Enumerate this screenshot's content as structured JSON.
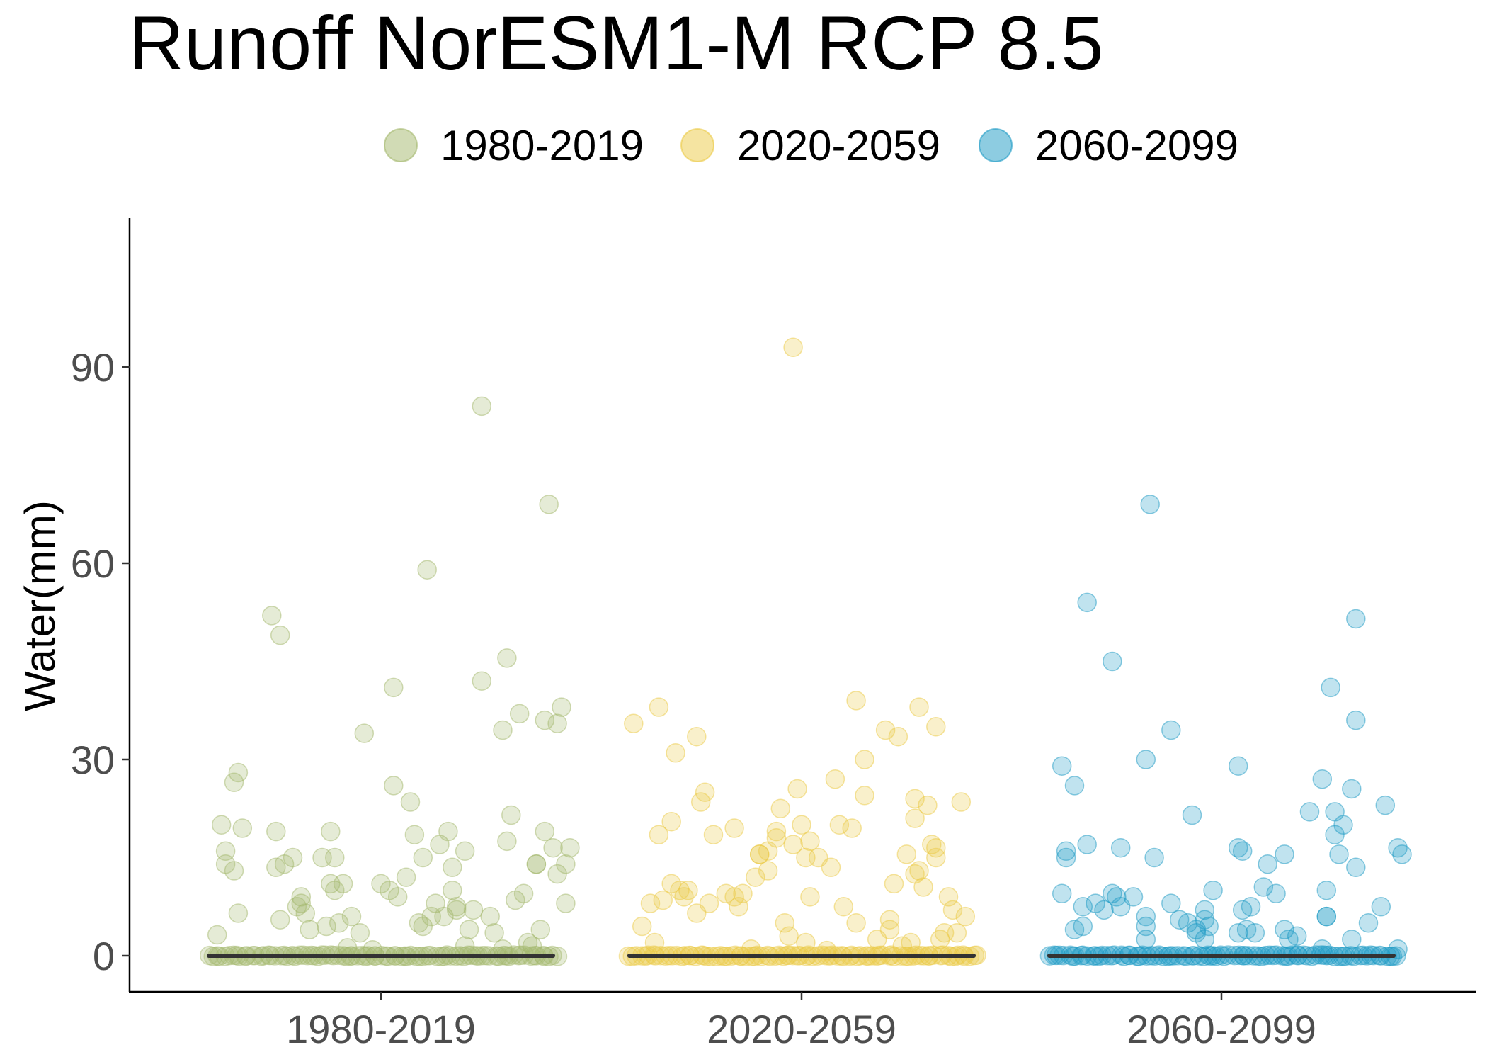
{
  "chart_data": {
    "type": "scatter",
    "title": "Runoff NorESM1-M RCP 8.5",
    "xlabel": "",
    "ylabel": "Water(mm)",
    "ylim": [
      -5,
      112
    ],
    "y_ticks": [
      0,
      30,
      60,
      90
    ],
    "categories": [
      "1980-2019",
      "2020-2059",
      "2060-2099"
    ],
    "legend_position": "top",
    "grid": false,
    "colors": [
      "#a3b86c",
      "#ebc944",
      "#1b9ac4"
    ],
    "median_color": "#333333",
    "series": [
      {
        "name": "1980-2019",
        "category": "1980-2019",
        "median": 0,
        "points": [
          [
            -0.39,
            3.2
          ],
          [
            -0.38,
            20
          ],
          [
            -0.37,
            16
          ],
          [
            -0.37,
            14
          ],
          [
            -0.35,
            13
          ],
          [
            -0.35,
            26.5
          ],
          [
            -0.34,
            28
          ],
          [
            -0.34,
            6.5
          ],
          [
            -0.33,
            19.5
          ],
          [
            -0.26,
            52
          ],
          [
            -0.25,
            19
          ],
          [
            -0.25,
            13.5
          ],
          [
            -0.24,
            49
          ],
          [
            -0.24,
            5.5
          ],
          [
            -0.23,
            14
          ],
          [
            -0.21,
            15
          ],
          [
            -0.2,
            7.5
          ],
          [
            -0.19,
            9
          ],
          [
            -0.19,
            8
          ],
          [
            -0.18,
            6.5
          ],
          [
            -0.17,
            4
          ],
          [
            -0.14,
            15
          ],
          [
            -0.13,
            4.5
          ],
          [
            -0.12,
            19
          ],
          [
            -0.12,
            11
          ],
          [
            -0.11,
            10
          ],
          [
            -0.11,
            15
          ],
          [
            -0.1,
            5
          ],
          [
            -0.09,
            11
          ],
          [
            -0.08,
            1.2
          ],
          [
            -0.07,
            6
          ],
          [
            -0.05,
            3.5
          ],
          [
            -0.04,
            34
          ],
          [
            -0.02,
            0.9
          ],
          [
            0.0,
            11
          ],
          [
            0.02,
            10
          ],
          [
            0.03,
            41
          ],
          [
            0.03,
            26
          ],
          [
            0.04,
            9
          ],
          [
            0.06,
            12
          ],
          [
            0.07,
            23.5
          ],
          [
            0.08,
            18.5
          ],
          [
            0.09,
            5
          ],
          [
            0.1,
            4.5
          ],
          [
            0.1,
            15
          ],
          [
            0.11,
            59
          ],
          [
            0.12,
            6
          ],
          [
            0.13,
            8
          ],
          [
            0.14,
            17
          ],
          [
            0.15,
            6
          ],
          [
            0.16,
            19
          ],
          [
            0.17,
            10
          ],
          [
            0.17,
            13.5
          ],
          [
            0.18,
            7
          ],
          [
            0.18,
            7.5
          ],
          [
            0.2,
            16
          ],
          [
            0.2,
            1.5
          ],
          [
            0.21,
            4
          ],
          [
            0.22,
            7
          ],
          [
            0.24,
            42
          ],
          [
            0.26,
            6
          ],
          [
            0.27,
            3.5
          ],
          [
            0.24,
            84
          ],
          [
            0.29,
            1
          ],
          [
            0.29,
            34.5
          ],
          [
            0.3,
            45.5
          ],
          [
            0.3,
            17.5
          ],
          [
            0.31,
            21.5
          ],
          [
            0.32,
            8.5
          ],
          [
            0.33,
            37
          ],
          [
            0.34,
            9.5
          ],
          [
            0.35,
            2
          ],
          [
            0.36,
            1.5
          ],
          [
            0.37,
            14
          ],
          [
            0.37,
            14
          ],
          [
            0.38,
            4
          ],
          [
            0.39,
            36
          ],
          [
            0.39,
            19
          ],
          [
            0.4,
            69
          ],
          [
            0.41,
            16.5
          ],
          [
            0.42,
            12.5
          ],
          [
            0.42,
            35.5
          ],
          [
            0.43,
            38
          ],
          [
            0.44,
            14
          ],
          [
            0.45,
            16.5
          ],
          [
            0.44,
            8
          ]
        ]
      },
      {
        "name": "2020-2059",
        "category": "2020-2059",
        "median": 0,
        "points": [
          [
            -0.4,
            35.5
          ],
          [
            -0.38,
            4.5
          ],
          [
            -0.36,
            8
          ],
          [
            -0.35,
            2
          ],
          [
            -0.34,
            38
          ],
          [
            -0.34,
            18.5
          ],
          [
            -0.33,
            8.5
          ],
          [
            -0.31,
            11
          ],
          [
            -0.31,
            20.5
          ],
          [
            -0.3,
            31
          ],
          [
            -0.29,
            10
          ],
          [
            -0.28,
            9
          ],
          [
            -0.27,
            10
          ],
          [
            -0.25,
            6.5
          ],
          [
            -0.25,
            33.5
          ],
          [
            -0.24,
            23.5
          ],
          [
            -0.23,
            25
          ],
          [
            -0.22,
            8
          ],
          [
            -0.21,
            18.5
          ],
          [
            -0.18,
            9.5
          ],
          [
            -0.16,
            9
          ],
          [
            -0.16,
            19.5
          ],
          [
            -0.15,
            7.5
          ],
          [
            -0.14,
            9.5
          ],
          [
            -0.12,
            1
          ],
          [
            -0.11,
            12
          ],
          [
            -0.1,
            15.5
          ],
          [
            -0.1,
            15.5
          ],
          [
            -0.08,
            16
          ],
          [
            -0.08,
            13
          ],
          [
            -0.06,
            19
          ],
          [
            -0.06,
            18
          ],
          [
            -0.05,
            22.5
          ],
          [
            -0.04,
            5
          ],
          [
            -0.03,
            3
          ],
          [
            -0.02,
            17
          ],
          [
            -0.01,
            25.5
          ],
          [
            -0.02,
            93
          ],
          [
            0.0,
            20
          ],
          [
            0.01,
            15
          ],
          [
            0.01,
            2
          ],
          [
            0.02,
            9
          ],
          [
            0.02,
            17.5
          ],
          [
            0.04,
            15
          ],
          [
            0.06,
            0.8
          ],
          [
            0.07,
            13.5
          ],
          [
            0.08,
            27
          ],
          [
            0.09,
            20
          ],
          [
            0.1,
            7.5
          ],
          [
            0.12,
            19.5
          ],
          [
            0.13,
            5
          ],
          [
            0.13,
            39
          ],
          [
            0.15,
            24.5
          ],
          [
            0.15,
            30
          ],
          [
            0.18,
            2.5
          ],
          [
            0.2,
            34.5
          ],
          [
            0.21,
            4
          ],
          [
            0.21,
            5.5
          ],
          [
            0.22,
            11
          ],
          [
            0.23,
            33.5
          ],
          [
            0.24,
            1.5
          ],
          [
            0.25,
            15.5
          ],
          [
            0.26,
            2
          ],
          [
            0.27,
            21
          ],
          [
            0.27,
            24
          ],
          [
            0.27,
            12.5
          ],
          [
            0.28,
            13
          ],
          [
            0.28,
            38
          ],
          [
            0.29,
            10.5
          ],
          [
            0.3,
            23
          ],
          [
            0.31,
            17
          ],
          [
            0.32,
            16.5
          ],
          [
            0.32,
            15
          ],
          [
            0.32,
            35
          ],
          [
            0.33,
            2.5
          ],
          [
            0.34,
            3.5
          ],
          [
            0.35,
            9
          ],
          [
            0.36,
            7
          ],
          [
            0.37,
            3.5
          ],
          [
            0.38,
            23.5
          ],
          [
            0.39,
            6
          ]
        ]
      },
      {
        "name": "2060-2099",
        "category": "2060-2099",
        "median": 0,
        "points": [
          [
            -0.38,
            29
          ],
          [
            -0.38,
            9.5
          ],
          [
            -0.37,
            16
          ],
          [
            -0.37,
            15
          ],
          [
            -0.35,
            26
          ],
          [
            -0.35,
            4
          ],
          [
            -0.33,
            7.5
          ],
          [
            -0.33,
            4.5
          ],
          [
            -0.32,
            54
          ],
          [
            -0.32,
            17
          ],
          [
            -0.3,
            8
          ],
          [
            -0.28,
            7
          ],
          [
            -0.26,
            9.5
          ],
          [
            -0.26,
            45
          ],
          [
            -0.25,
            9
          ],
          [
            -0.24,
            16.5
          ],
          [
            -0.24,
            7.5
          ],
          [
            -0.21,
            9
          ],
          [
            -0.18,
            30
          ],
          [
            -0.18,
            6
          ],
          [
            -0.18,
            4.5
          ],
          [
            -0.18,
            2.5
          ],
          [
            -0.17,
            69
          ],
          [
            -0.16,
            15
          ],
          [
            -0.12,
            8
          ],
          [
            -0.12,
            34.5
          ],
          [
            -0.1,
            5.5
          ],
          [
            -0.08,
            5
          ],
          [
            -0.07,
            21.5
          ],
          [
            -0.06,
            4
          ],
          [
            -0.06,
            3.5
          ],
          [
            -0.04,
            5.5
          ],
          [
            -0.04,
            2.5
          ],
          [
            -0.04,
            7
          ],
          [
            -0.03,
            4.5
          ],
          [
            -0.02,
            10
          ],
          [
            0.04,
            16.5
          ],
          [
            0.04,
            3.5
          ],
          [
            0.04,
            29
          ],
          [
            0.05,
            16
          ],
          [
            0.05,
            7
          ],
          [
            0.06,
            4
          ],
          [
            0.07,
            7.5
          ],
          [
            0.08,
            3.5
          ],
          [
            0.1,
            10.5
          ],
          [
            0.11,
            14
          ],
          [
            0.13,
            9.5
          ],
          [
            0.15,
            15.5
          ],
          [
            0.15,
            4
          ],
          [
            0.16,
            2.5
          ],
          [
            0.18,
            3
          ],
          [
            0.21,
            22
          ],
          [
            0.24,
            27
          ],
          [
            0.24,
            1
          ],
          [
            0.25,
            6
          ],
          [
            0.25,
            10
          ],
          [
            0.25,
            6
          ],
          [
            0.26,
            41
          ],
          [
            0.27,
            18.5
          ],
          [
            0.27,
            22
          ],
          [
            0.28,
            15.5
          ],
          [
            0.29,
            20
          ],
          [
            0.31,
            2.5
          ],
          [
            0.31,
            25.5
          ],
          [
            0.32,
            51.5
          ],
          [
            0.32,
            13.5
          ],
          [
            0.32,
            36
          ],
          [
            0.35,
            5
          ],
          [
            0.38,
            7.5
          ],
          [
            0.39,
            23
          ],
          [
            0.42,
            1
          ],
          [
            0.42,
            16.5
          ],
          [
            0.43,
            15.5
          ]
        ]
      }
    ]
  }
}
